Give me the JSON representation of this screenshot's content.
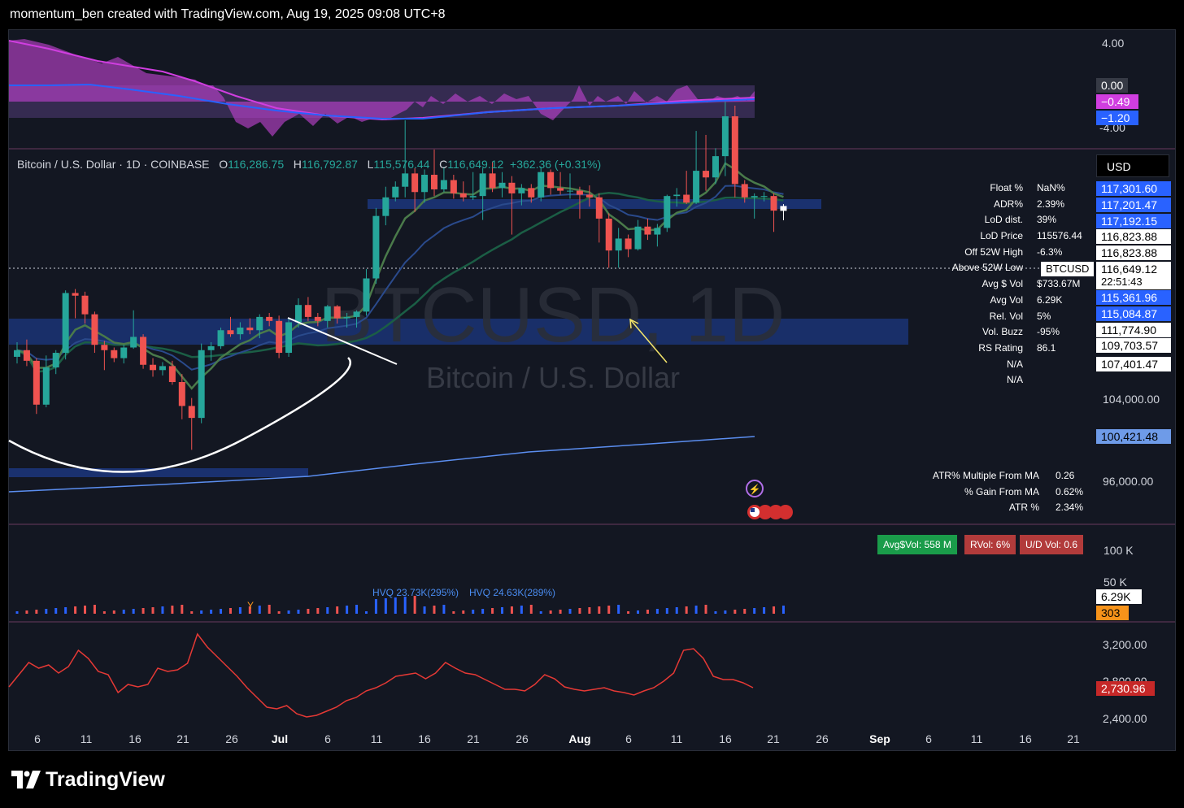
{
  "header": {
    "text": "momentum_ben created with TradingView.com, Aug 19, 2025 09:08 UTC+8"
  },
  "brand": {
    "name": "TradingView"
  },
  "colors": {
    "up": "#26a69a",
    "down": "#ef5350",
    "bg": "#131722",
    "accent": "#2962ff"
  },
  "watermark": {
    "symbol": "BTCUSD, 1D",
    "name": "Bitcoin / U.S. Dollar"
  },
  "ohlc": {
    "title": "Bitcoin / U.S. Dollar · 1D · COINBASE",
    "o_label": "O",
    "o": "116,286.75",
    "h_label": "H",
    "h": "116,792.87",
    "l_label": "L",
    "l": "115,576.44",
    "c_label": "C",
    "c": "116,649.12",
    "chg": "+362.36 (+0.31%)"
  },
  "currency": "USD",
  "symbol_tag": "BTCUSD",
  "countdown": "22:51:43",
  "stats": [
    {
      "k": "Float %",
      "v": "NaN%"
    },
    {
      "k": "ADR%",
      "v": "2.39%"
    },
    {
      "k": "LoD dist.",
      "v": "39%"
    },
    {
      "k": "LoD Price",
      "v": "115576.44"
    },
    {
      "k": "Off 52W High",
      "v": "-6.3%"
    },
    {
      "k": "Above 52W Low",
      "v": ""
    },
    {
      "k": "Avg $ Vol",
      "v": "$733.67M"
    },
    {
      "k": "Avg Vol",
      "v": "6.29K"
    },
    {
      "k": "Rel. Vol",
      "v": "5%"
    },
    {
      "k": "Vol. Buzz",
      "v": "-95%"
    },
    {
      "k": "RS Rating",
      "v": "86.1"
    },
    {
      "k": "N/A",
      "v": ""
    },
    {
      "k": "N/A",
      "v": ""
    }
  ],
  "price_tags": [
    {
      "v": "117,301.60",
      "style": "blue"
    },
    {
      "v": "117,201.47",
      "style": "blue"
    },
    {
      "v": "117,192.15",
      "style": "blue"
    },
    {
      "v": "116,823.88",
      "style": "white"
    },
    {
      "v": "116,823.88",
      "style": "white"
    },
    {
      "v": "116,649.12",
      "style": "white"
    },
    {
      "v": "115,361.96",
      "style": "blue"
    },
    {
      "v": "115,084.87",
      "style": "blue"
    },
    {
      "v": "111,774.90",
      "style": "white"
    },
    {
      "v": "109,703.57",
      "style": "white"
    },
    {
      "v": "107,401.47",
      "style": "white"
    }
  ],
  "price_axis": {
    "p104": "104,000.00",
    "p96": "96,000.00",
    "sma200": "100,421.48"
  },
  "atr": [
    {
      "k": "ATR% Multiple From MA",
      "v": "0.26"
    },
    {
      "k": "% Gain From MA",
      "v": "0.62%"
    },
    {
      "k": "ATR %",
      "v": "2.34%"
    }
  ],
  "osc": {
    "axis_top": "4.00",
    "axis_bottom": "-4.00",
    "v0": "0.00",
    "v1": "−0.49",
    "v2": "−1.20"
  },
  "volume": {
    "axis100": "100 K",
    "axis50": "50 K",
    "last": "6.29K",
    "count": "303",
    "avg": "Avg$Vol: 558 M",
    "rvol": "RVol: 6%",
    "ud": "U/D Vol: 0.6",
    "hvq1": "HVQ 23.73K(295%)",
    "hvq2": "HVQ 24.63K(289%)",
    "marker": "Y"
  },
  "bottom": {
    "axis3200": "3,200.00",
    "axis2800": "2,800.00",
    "axis2400": "2,400.00",
    "last": "2,730.96"
  },
  "x_ticks": [
    {
      "t": "6",
      "x": 46
    },
    {
      "t": "11",
      "x": 106
    },
    {
      "t": "16",
      "x": 166
    },
    {
      "t": "21",
      "x": 225
    },
    {
      "t": "26",
      "x": 285
    },
    {
      "t": "Jul",
      "x": 344,
      "b": true
    },
    {
      "t": "6",
      "x": 403
    },
    {
      "t": "11",
      "x": 463
    },
    {
      "t": "16",
      "x": 522
    },
    {
      "t": "21",
      "x": 582
    },
    {
      "t": "26",
      "x": 642
    },
    {
      "t": "Aug",
      "x": 713,
      "b": true
    },
    {
      "t": "6",
      "x": 773
    },
    {
      "t": "11",
      "x": 832
    },
    {
      "t": "16",
      "x": 892
    },
    {
      "t": "21",
      "x": 951
    },
    {
      "t": "26",
      "x": 1011
    },
    {
      "t": "Sep",
      "x": 1082,
      "b": true
    },
    {
      "t": "6",
      "x": 1142
    },
    {
      "t": "11",
      "x": 1201
    },
    {
      "t": "16",
      "x": 1261
    },
    {
      "t": "21",
      "x": 1320
    }
  ],
  "chart_data": {
    "type": "candlestick",
    "title": "Bitcoin / U.S. Dollar · 1D · COINBASE",
    "x_range": [
      "Jun 3",
      "Sep 23"
    ],
    "y_range": [
      93000,
      119000
    ],
    "grid": false,
    "candles": [
      [
        105300,
        106400,
        104800,
        105800
      ],
      [
        105800,
        106600,
        104600,
        105000
      ],
      [
        105000,
        105200,
        101000,
        101700
      ],
      [
        101700,
        105400,
        101500,
        104500
      ],
      [
        104500,
        105800,
        104000,
        105600
      ],
      [
        105600,
        110300,
        105100,
        110100
      ],
      [
        110100,
        110400,
        108200,
        109900
      ],
      [
        109900,
        110200,
        107800,
        108500
      ],
      [
        108500,
        108700,
        105600,
        106200
      ],
      [
        106200,
        106500,
        104300,
        105800
      ],
      [
        105800,
        106000,
        104900,
        105200
      ],
      [
        105200,
        106200,
        104800,
        106000
      ],
      [
        106000,
        108800,
        105900,
        106800
      ],
      [
        106800,
        107000,
        104400,
        104700
      ],
      [
        104700,
        105200,
        103800,
        104300
      ],
      [
        104300,
        104900,
        103900,
        104600
      ],
      [
        104600,
        105000,
        103200,
        103400
      ],
      [
        103400,
        104000,
        100600,
        101600
      ],
      [
        101600,
        102200,
        98300,
        100700
      ],
      [
        100700,
        106300,
        100300,
        105800
      ],
      [
        105800,
        106400,
        105000,
        106100
      ],
      [
        106100,
        107500,
        105900,
        107300
      ],
      [
        107300,
        108300,
        106800,
        107000
      ],
      [
        107000,
        107900,
        106600,
        107500
      ],
      [
        107500,
        108200,
        107000,
        107300
      ],
      [
        107300,
        108500,
        106700,
        108300
      ],
      [
        108300,
        108600,
        107600,
        108000
      ],
      [
        108000,
        108400,
        105200,
        105600
      ],
      [
        105600,
        108200,
        105300,
        107900
      ],
      [
        107900,
        109700,
        107500,
        109200
      ],
      [
        109200,
        109800,
        108000,
        108300
      ],
      [
        108300,
        108600,
        107600,
        108000
      ],
      [
        108000,
        109200,
        107500,
        109100
      ],
      [
        109100,
        109200,
        107800,
        108200
      ],
      [
        108200,
        108600,
        107500,
        108300
      ],
      [
        108300,
        108800,
        107500,
        108700
      ],
      [
        108700,
        111900,
        108400,
        111200
      ],
      [
        111200,
        116500,
        110800,
        115900
      ],
      [
        115900,
        118100,
        115200,
        117300
      ],
      [
        117300,
        118500,
        117000,
        118100
      ],
      [
        118100,
        123100,
        117300,
        119100
      ],
      [
        119100,
        119500,
        116200,
        117700
      ],
      [
        117700,
        119400,
        116900,
        119000
      ],
      [
        119000,
        120900,
        117400,
        117900
      ],
      [
        117900,
        119600,
        117700,
        118600
      ],
      [
        118600,
        119000,
        117200,
        117600
      ],
      [
        117600,
        118500,
        117000,
        117300
      ],
      [
        117300,
        119200,
        117100,
        117400
      ],
      [
        117400,
        119500,
        115600,
        119100
      ],
      [
        119100,
        120000,
        117700,
        118000
      ],
      [
        118000,
        119200,
        117300,
        118400
      ],
      [
        118400,
        118900,
        114500,
        117600
      ],
      [
        117600,
        118300,
        116700,
        118000
      ],
      [
        118000,
        118300,
        116900,
        117300
      ],
      [
        117300,
        119600,
        117000,
        119200
      ],
      [
        119200,
        119400,
        117500,
        118000
      ],
      [
        118000,
        119200,
        117500,
        117800
      ],
      [
        117800,
        119100,
        117200,
        117800
      ],
      [
        117800,
        118100,
        115700,
        117500
      ],
      [
        117500,
        118200,
        116600,
        117300
      ],
      [
        117300,
        117600,
        113900,
        115700
      ],
      [
        115700,
        116100,
        112000,
        113300
      ],
      [
        113300,
        115000,
        112000,
        114200
      ],
      [
        114200,
        114500,
        112800,
        113400
      ],
      [
        113400,
        115600,
        113300,
        115100
      ],
      [
        115100,
        115700,
        114100,
        114500
      ],
      [
        114500,
        115300,
        113600,
        115000
      ],
      [
        115000,
        117500,
        114700,
        117400
      ],
      [
        117400,
        118000,
        116600,
        117500
      ],
      [
        117500,
        119300,
        116800,
        116900
      ],
      [
        116900,
        122300,
        116800,
        119300
      ],
      [
        119300,
        122000,
        117800,
        118800
      ],
      [
        118800,
        121000,
        118300,
        120400
      ],
      [
        120400,
        124500,
        118900,
        123400
      ],
      [
        123400,
        124200,
        117300,
        118300
      ],
      [
        118300,
        118600,
        116900,
        117300
      ],
      [
        117300,
        117600,
        115700,
        117400
      ],
      [
        117400,
        117700,
        117000,
        117400
      ],
      [
        117400,
        117600,
        114700,
        116300
      ],
      [
        116286.75,
        116792.87,
        115576.44,
        116649.12
      ]
    ],
    "sma200_last": 100421.48
  }
}
